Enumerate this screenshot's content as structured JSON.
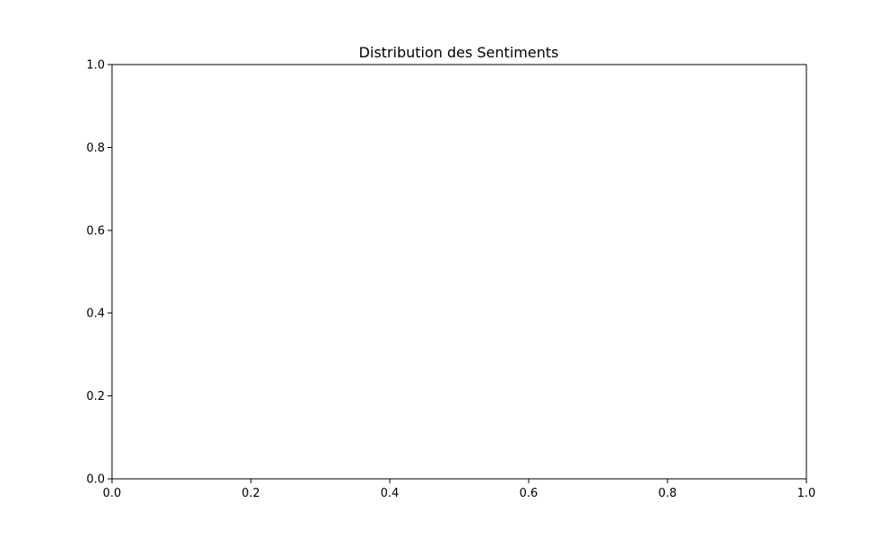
{
  "chart_data": {
    "type": "bar",
    "title": "Distribution des Sentiments",
    "xlabel": "",
    "ylabel": "",
    "xlim": [
      0.0,
      1.0
    ],
    "ylim": [
      0.0,
      1.0
    ],
    "x_ticks": [
      "0.0",
      "0.2",
      "0.4",
      "0.6",
      "0.8",
      "1.0"
    ],
    "y_ticks": [
      "0.0",
      "0.2",
      "0.4",
      "0.6",
      "0.8",
      "1.0"
    ],
    "categories": [],
    "values": [],
    "grid": false,
    "legend": "none"
  }
}
